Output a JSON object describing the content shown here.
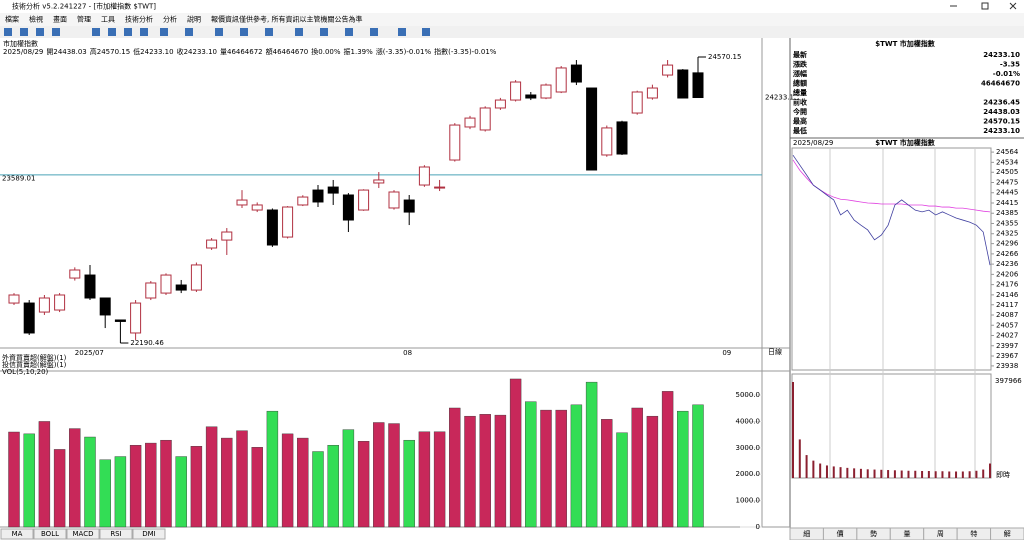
{
  "window": {
    "title": "技術分析 v5.2.241227 - [市加權指數 $TWT]",
    "menu": [
      "檔案",
      "檢視",
      "畫面",
      "管理",
      "工具",
      "技術分析",
      "分析",
      "說明",
      "報價資訊僅供參考, 所有資訊以主管機關公告為準"
    ]
  },
  "chart": {
    "title": "市加權指數",
    "info": [
      "2025/08/29",
      "開24438.03",
      "高24570.15",
      "低24233.10",
      "收24233.10",
      "量46464672",
      "額46464670",
      "換0.00%",
      "振1.39%",
      "漲(-3.35)-0.01%",
      "指數(-3.35)-0.01%"
    ],
    "ylim": [
      22149,
      24670
    ],
    "candles": {
      "open": [
        22523,
        22523,
        22448,
        22465,
        22731,
        22756,
        22565,
        22382,
        22274,
        22565,
        22606,
        22673,
        22631,
        22981,
        23047,
        23339,
        23297,
        23297,
        23072,
        23339,
        23463,
        23488,
        23422,
        23297,
        23522,
        23314,
        23380,
        23505,
        23480,
        23713,
        23988,
        23963,
        24146,
        24212,
        24254,
        24229,
        24279,
        24503,
        24312,
        23755,
        24030,
        24104,
        24229,
        24420,
        24462,
        24438.03
      ],
      "high": [
        22606,
        22548,
        22590,
        22606,
        22820,
        22840,
        22565,
        22382,
        22548,
        22706,
        22770,
        22715,
        22860,
        23064,
        23147,
        23463,
        23360,
        23310,
        23330,
        23420,
        23505,
        23547,
        23438,
        23470,
        23613,
        23463,
        23422,
        23670,
        23547,
        24020,
        24080,
        24160,
        24230,
        24378,
        24279,
        24350,
        24495,
        24545,
        24312,
        24000,
        24040,
        24290,
        24340,
        24545,
        24470,
        24570.15
      ],
      "low": [
        22507,
        22257,
        22424,
        22448,
        22710,
        22548,
        22315,
        22190.46,
        22216,
        22548,
        22590,
        22606,
        22615,
        22965,
        22923,
        23314,
        23280,
        22990,
        23060,
        23330,
        23322,
        23339,
        23114,
        23290,
        23480,
        23300,
        23172,
        23490,
        23455,
        23700,
        23970,
        23950,
        24130,
        24200,
        24212,
        24220,
        24270,
        24337,
        23630,
        23740,
        23755,
        24090,
        24215,
        24400,
        24229,
        24233.1
      ],
      "close": [
        22590,
        22274,
        22565,
        22590,
        22798,
        22565,
        22424,
        22370,
        22523,
        22690,
        22756,
        22631,
        22840,
        23047,
        23114,
        23380,
        23339,
        23006,
        23322,
        23405,
        23364,
        23438,
        23214,
        23463,
        23547,
        23447,
        23280,
        23655,
        23488,
        24004,
        24062,
        24146,
        24212,
        24362,
        24229,
        24337,
        24479,
        24362,
        23630,
        23980,
        23763,
        24279,
        24312,
        24503,
        24229,
        24233.1
      ]
    },
    "ref_line": 23589.01,
    "date_labels": [
      "2025/07",
      "08",
      "09"
    ],
    "period": "日線",
    "indicators": [
      "外資買賣超(解盤)(1)",
      "投信買賣超(解盤)(1)",
      "VOL(5,10,20)"
    ],
    "volume": {
      "values": [
        3600,
        3530,
        4000,
        2940,
        3730,
        3410,
        2550,
        2670,
        3100,
        3180,
        3290,
        2670,
        3060,
        3800,
        3370,
        3650,
        3020,
        4390,
        3530,
        3370,
        2860,
        3100,
        3690,
        3250,
        3960,
        3920,
        3290,
        3610,
        3610,
        4510,
        4200,
        4270,
        4240,
        5610,
        4750,
        4430,
        4430,
        4630,
        5490,
        4080,
        3570,
        4510,
        4200,
        5140,
        4390,
        4630
      ],
      "ylim": [
        0,
        5760
      ],
      "yticks": [
        {
          "value": 5000,
          "label": "5000.0"
        },
        {
          "value": 4000,
          "label": "4000.0"
        },
        {
          "value": 3000,
          "label": "3000.0"
        },
        {
          "value": 2000,
          "label": "2000.0"
        },
        {
          "value": 1000,
          "label": "1000.0"
        },
        0
      ],
      "up_color": "#c8285a",
      "down_color": "#33dd55"
    },
    "tabs": [
      "MA",
      "BOLL",
      "MACD",
      "RSI",
      "DMI"
    ]
  },
  "quote": {
    "header": "$TWT 市加權指數",
    "rows": [
      {
        "label": "最新",
        "value": "24233.10",
        "color": "#00a000"
      },
      {
        "label": "漲跌",
        "value": "-3.35",
        "color": "#00a000"
      },
      {
        "label": "漲幅",
        "value": "-0.01%",
        "color": "#00a000"
      },
      {
        "label": "總額",
        "value": "46464670",
        "color": "#000000"
      },
      {
        "label": "總量"
      },
      {
        "label": "前收",
        "value": "24236.45",
        "color": "#000000"
      },
      {
        "label": "今開",
        "value": "24438.03",
        "color": "#d00000"
      },
      {
        "label": "最高",
        "value": "24570.15",
        "color": "#d00000"
      },
      {
        "label": "最低",
        "value": "24233.10",
        "color": "#00a000"
      }
    ]
  },
  "intraday": {
    "date": "2025/08/29",
    "title": "$TWT 市加權指數",
    "ylim": [
      23926,
      24576
    ],
    "yticks": [
      24564,
      24534,
      24505,
      24475,
      24445,
      24415,
      24385,
      24355,
      24325,
      24296,
      24266,
      24236,
      24206,
      24176,
      24146,
      24117,
      24087,
      24057,
      24027,
      23997,
      23967,
      23938
    ],
    "price": [
      24555,
      24526,
      24497,
      24467,
      24453,
      24438,
      24424,
      24380,
      24394,
      24365,
      24350,
      24336,
      24307,
      24321,
      24350,
      24409,
      24424,
      24409,
      24394,
      24389,
      24394,
      24380,
      24389,
      24380,
      24371,
      24365,
      24359,
      24350,
      24330,
      24233.1
    ],
    "average": [
      24541,
      24511,
      24488,
      24467,
      24453,
      24441,
      24432,
      24426,
      24424,
      24421,
      24418,
      24415,
      24414,
      24412,
      24412,
      24412,
      24412,
      24409,
      24409,
      24409,
      24406,
      24406,
      24403,
      24403,
      24400,
      24400,
      24397,
      24394,
      24391,
      24389
    ],
    "volume": [
      397966,
      160000,
      95000,
      72000,
      60000,
      52000,
      48000,
      45000,
      42000,
      40000,
      38000,
      36000,
      35000,
      34000,
      33000,
      32000,
      31000,
      30000,
      30000,
      29000,
      29000,
      28000,
      28000,
      27000,
      27000,
      27000,
      28000,
      30000,
      35000,
      60000
    ],
    "volume_label": "397966",
    "realtime": "即時",
    "tabs": [
      "細",
      "價",
      "勢",
      "量",
      "周",
      "特",
      "解"
    ]
  }
}
